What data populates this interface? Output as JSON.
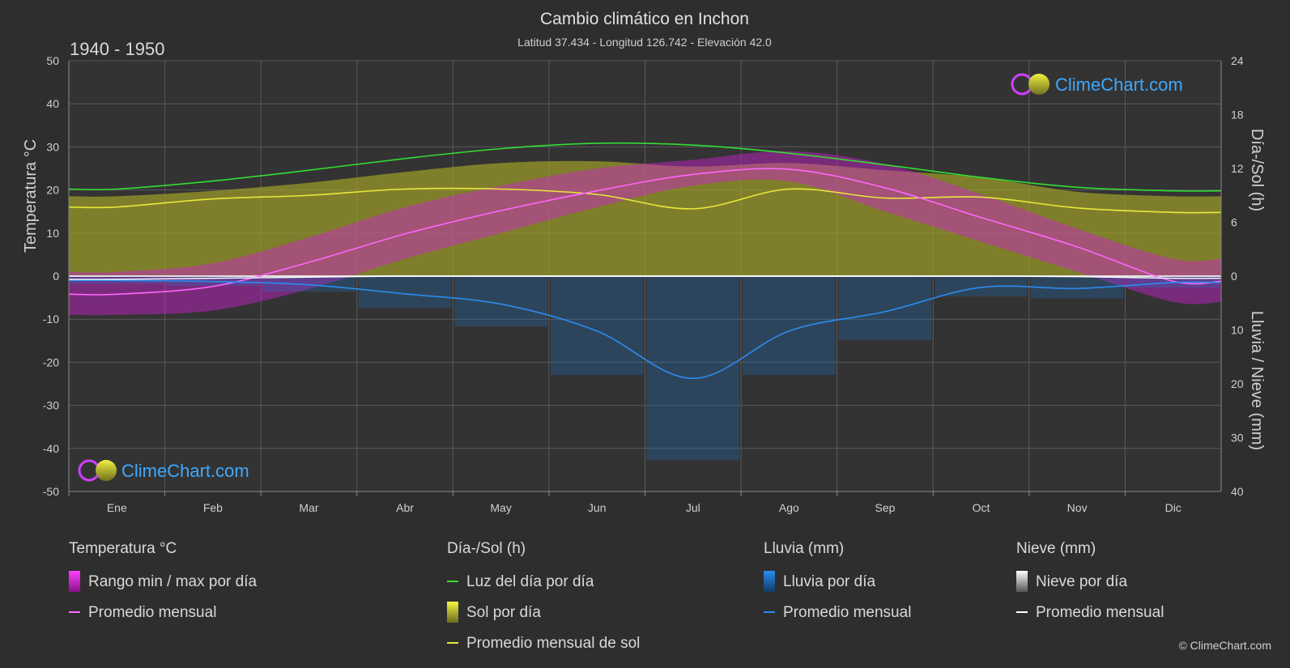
{
  "header": {
    "title": "Cambio climático en Inchon",
    "subtitle": "Latitud 37.434 - Longitud 126.742 - Elevación 42.0",
    "period": "1940 - 1950"
  },
  "brand": {
    "name": "ClimeChart.com",
    "copyright": "© ClimeChart.com"
  },
  "colors": {
    "background": "#2e2e2e",
    "grid": "#5a5a5a",
    "temperature_range": "#d020d0",
    "temperature_avg": "#ff66ff",
    "daylight": "#33dd33",
    "sunshine_fill": "#9a9a2a",
    "sunshine_avg": "#e8e83a",
    "rain": "#1f78c8",
    "rain_avg": "#2a8cf0",
    "snow": "#d0d0d0",
    "snow_avg": "#ffffff"
  },
  "chart_data": {
    "type": "line",
    "months": [
      "Ene",
      "Feb",
      "Mar",
      "Abr",
      "May",
      "Jun",
      "Jul",
      "Ago",
      "Sep",
      "Oct",
      "Nov",
      "Dic"
    ],
    "axes": {
      "left": {
        "label": "Temperatura °C",
        "range": [
          -50,
          50
        ],
        "ticks": [
          50,
          40,
          30,
          20,
          10,
          0,
          -10,
          -20,
          -30,
          -40,
          -50
        ]
      },
      "right_top": {
        "label": "Día-/Sol (h)",
        "range": [
          0,
          24
        ],
        "ticks": [
          24,
          18,
          12,
          6,
          0
        ]
      },
      "right_bottom": {
        "label": "Lluvia / Nieve (mm)",
        "range": [
          0,
          40
        ],
        "ticks": [
          0,
          10,
          20,
          30,
          40
        ]
      }
    },
    "grid": true,
    "series": [
      {
        "name": "Rango min / max por día",
        "kind": "range",
        "unit": "°C",
        "min": [
          -9,
          -8,
          -3,
          4,
          10,
          16,
          21,
          22,
          15,
          8,
          1,
          -6
        ],
        "max": [
          1,
          3,
          9,
          16,
          21,
          25,
          27,
          29,
          26,
          19,
          11,
          4
        ]
      },
      {
        "name": "Promedio mensual",
        "kind": "temperature",
        "unit": "°C",
        "values": [
          -4.2,
          -2.4,
          3.2,
          9.8,
          15.2,
          19.8,
          23.6,
          24.8,
          20.5,
          13.6,
          6.8,
          -1.2
        ]
      },
      {
        "name": "Luz del día por día",
        "kind": "daylight",
        "unit": "h",
        "values": [
          9.7,
          10.6,
          11.8,
          13.1,
          14.2,
          14.8,
          14.6,
          13.7,
          12.4,
          11.0,
          9.9,
          9.5
        ]
      },
      {
        "name": "Sol por día",
        "kind": "sunshine",
        "unit": "h",
        "values": [
          8.9,
          9.5,
          10.4,
          11.6,
          12.6,
          12.8,
          12.2,
          12.6,
          11.8,
          11.0,
          9.4,
          8.9
        ]
      },
      {
        "name": "Promedio mensual de sol",
        "kind": "sunshine_avg",
        "unit": "h",
        "values": [
          7.7,
          8.6,
          9.0,
          9.7,
          9.7,
          9.1,
          7.5,
          9.7,
          8.7,
          8.8,
          7.6,
          7.1
        ]
      },
      {
        "name": "Promedio mensual",
        "kind": "rain_avg",
        "unit": "mm",
        "values": [
          0.8,
          1.0,
          1.6,
          3.3,
          5.2,
          10.2,
          19.0,
          10.2,
          6.6,
          2.1,
          2.3,
          1.2
        ]
      },
      {
        "name": "Promedio mensual",
        "kind": "snow_avg",
        "unit": "mm",
        "values": [
          0.6,
          0.4,
          0.2,
          0,
          0,
          0,
          0,
          0,
          0,
          0,
          0.1,
          0.4
        ]
      }
    ]
  },
  "legend": {
    "groups": [
      {
        "title": "Temperatura °C",
        "items": [
          {
            "label": "Rango min / max por día",
            "swatch": "box",
            "color": "#d020d0"
          },
          {
            "label": "Promedio mensual",
            "swatch": "line",
            "color": "#ff66ff"
          }
        ]
      },
      {
        "title": "Día-/Sol (h)",
        "items": [
          {
            "label": "Luz del día por día",
            "swatch": "line",
            "color": "#33dd33"
          },
          {
            "label": "Sol por día",
            "swatch": "box",
            "color": "#c8c83a"
          },
          {
            "label": "Promedio mensual de sol",
            "swatch": "line",
            "color": "#e8e83a"
          }
        ]
      },
      {
        "title": "Lluvia (mm)",
        "items": [
          {
            "label": "Lluvia por día",
            "swatch": "box",
            "color": "#1f78c8"
          },
          {
            "label": "Promedio mensual",
            "swatch": "line",
            "color": "#2a8cf0"
          }
        ]
      },
      {
        "title": "Nieve (mm)",
        "items": [
          {
            "label": "Nieve por día",
            "swatch": "box",
            "color": "#d0d0d0"
          },
          {
            "label": "Promedio mensual",
            "swatch": "line",
            "color": "#ffffff"
          }
        ]
      }
    ]
  }
}
